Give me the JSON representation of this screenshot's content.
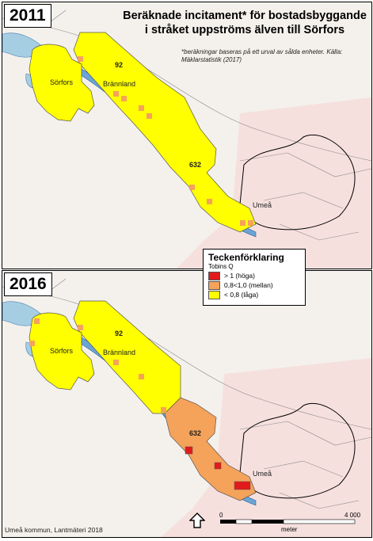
{
  "title": "Beräknade incitament* för bostadsbyggande i stråket uppströms älven till Sörfors",
  "note": "*beräkningar baseras på ett urval av sålda enheter. Källa: Mäklarstatistik (2017)",
  "panels": [
    {
      "year": "2011",
      "places": {
        "sorfors": "Sörfors",
        "brannland": "Brännland",
        "umea": "Umeå"
      },
      "roads": {
        "r92": "92",
        "r632": "632"
      }
    },
    {
      "year": "2016",
      "places": {
        "sorfors": "Sörfors",
        "brannland": "Brännland",
        "umea": "Umeå"
      },
      "roads": {
        "r92": "92",
        "r632": "632"
      }
    }
  ],
  "legend": {
    "title": "Teckenförklaring",
    "subtitle": "Tobins Q",
    "items": [
      {
        "label": "> 1 (höga)",
        "color": "#e31a1c"
      },
      {
        "label": "0,8<1,0 (mellan)",
        "color": "#f5a25a"
      },
      {
        "label": "< 0,8 (låga)",
        "color": "#ffff00"
      }
    ]
  },
  "scalebar": {
    "start": "0",
    "end": "4 000",
    "unit": "meter"
  },
  "credit": "Umeå kommun, Lantmäteri 2018",
  "colors": {
    "water": "#a6cee3",
    "river": "#6aa5d6",
    "background": "#f4f1ec",
    "urban": "#f7d6d6"
  }
}
